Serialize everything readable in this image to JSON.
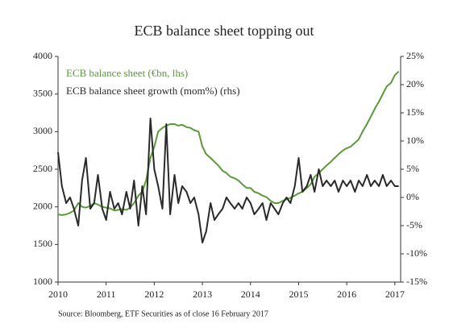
{
  "chart_data": {
    "type": "line",
    "title": "ECB balance sheet topping out",
    "source": "Source: Bloomberg, ETF Securities as of close 16 February 2017",
    "x": [
      2010,
      2010.08,
      2010.17,
      2010.25,
      2010.33,
      2010.42,
      2010.5,
      2010.58,
      2010.67,
      2010.75,
      2010.83,
      2010.92,
      2011,
      2011.08,
      2011.17,
      2011.25,
      2011.33,
      2011.42,
      2011.5,
      2011.58,
      2011.67,
      2011.75,
      2011.83,
      2011.92,
      2012,
      2012.08,
      2012.17,
      2012.25,
      2012.33,
      2012.42,
      2012.5,
      2012.58,
      2012.67,
      2012.75,
      2012.83,
      2012.92,
      2013,
      2013.08,
      2013.17,
      2013.25,
      2013.33,
      2013.42,
      2013.5,
      2013.58,
      2013.67,
      2013.75,
      2013.83,
      2013.92,
      2014,
      2014.08,
      2014.17,
      2014.25,
      2014.33,
      2014.42,
      2014.5,
      2014.58,
      2014.67,
      2014.75,
      2014.83,
      2014.92,
      2015,
      2015.08,
      2015.17,
      2015.25,
      2015.33,
      2015.42,
      2015.5,
      2015.58,
      2015.67,
      2015.75,
      2015.83,
      2015.92,
      2016,
      2016.08,
      2016.17,
      2016.25,
      2016.33,
      2016.42,
      2016.5,
      2016.58,
      2016.67,
      2016.75,
      2016.83,
      2016.92,
      2017,
      2017.08
    ],
    "series": [
      {
        "name": "ECB balance sheet (€bn, lhs)",
        "color": "#5a9a3a",
        "axis": "y",
        "values": [
          1900,
          1890,
          1900,
          1920,
          1950,
          2050,
          2000,
          1990,
          2010,
          2050,
          2030,
          2000,
          1990,
          1980,
          1950,
          1960,
          1970,
          1960,
          1990,
          2050,
          2150,
          2200,
          2350,
          2650,
          2800,
          3000,
          3050,
          3080,
          3100,
          3100,
          3080,
          3090,
          3060,
          3050,
          3020,
          3000,
          2800,
          2700,
          2650,
          2600,
          2550,
          2480,
          2450,
          2400,
          2380,
          2350,
          2300,
          2250,
          2250,
          2200,
          2180,
          2150,
          2130,
          2080,
          2050,
          2050,
          2080,
          2100,
          2120,
          2150,
          2180,
          2200,
          2250,
          2300,
          2400,
          2450,
          2500,
          2550,
          2600,
          2650,
          2700,
          2750,
          2780,
          2800,
          2850,
          2900,
          3000,
          3100,
          3200,
          3300,
          3400,
          3500,
          3600,
          3650,
          3750,
          3800
        ]
      },
      {
        "name": "ECB balance sheet growth (mom%) (rhs)",
        "color": "#2a2a2a",
        "axis": "y2",
        "values": [
          8,
          2,
          -1,
          0,
          -2,
          -5,
          3,
          7,
          -2,
          -1,
          4,
          -2,
          -4,
          1,
          -2,
          -1,
          -3,
          1,
          -2,
          3,
          -5,
          2,
          -3,
          14,
          5,
          2,
          -2,
          13,
          -3,
          4,
          -1,
          2,
          1,
          -1,
          0,
          -3,
          -8,
          -6,
          -1,
          -4,
          -3,
          -2,
          0,
          -1,
          -2,
          -1,
          -2,
          0,
          -1,
          -3,
          -2,
          -1,
          -4,
          -1,
          -2,
          -3,
          -1,
          0,
          -1,
          2,
          7,
          1,
          2,
          4,
          1,
          5,
          2,
          3,
          2,
          3,
          1,
          3,
          2,
          3,
          1,
          3,
          2,
          4,
          2,
          3,
          2,
          4,
          2,
          3,
          2,
          2
        ]
      }
    ],
    "xlim": [
      2010,
      2017.12
    ],
    "xticks": [
      2010,
      2011,
      2012,
      2013,
      2014,
      2015,
      2016,
      2017
    ],
    "ylim": [
      1000,
      4000
    ],
    "yticks": [
      1000,
      1500,
      2000,
      2500,
      3000,
      3500,
      4000
    ],
    "y2lim": [
      -15,
      25
    ],
    "y2ticks": [
      {
        "value": -15,
        "label": "-15%"
      },
      {
        "value": -10,
        "label": "-10%"
      },
      {
        "value": -5,
        "label": "-5%"
      },
      {
        "value": 0,
        "label": "0%"
      },
      {
        "value": 5,
        "label": "5%"
      },
      {
        "value": 10,
        "label": "10%"
      },
      {
        "value": 15,
        "label": "15%"
      },
      {
        "value": 20,
        "label": "20%"
      },
      {
        "value": 25,
        "label": "25%"
      }
    ],
    "grid": false
  }
}
